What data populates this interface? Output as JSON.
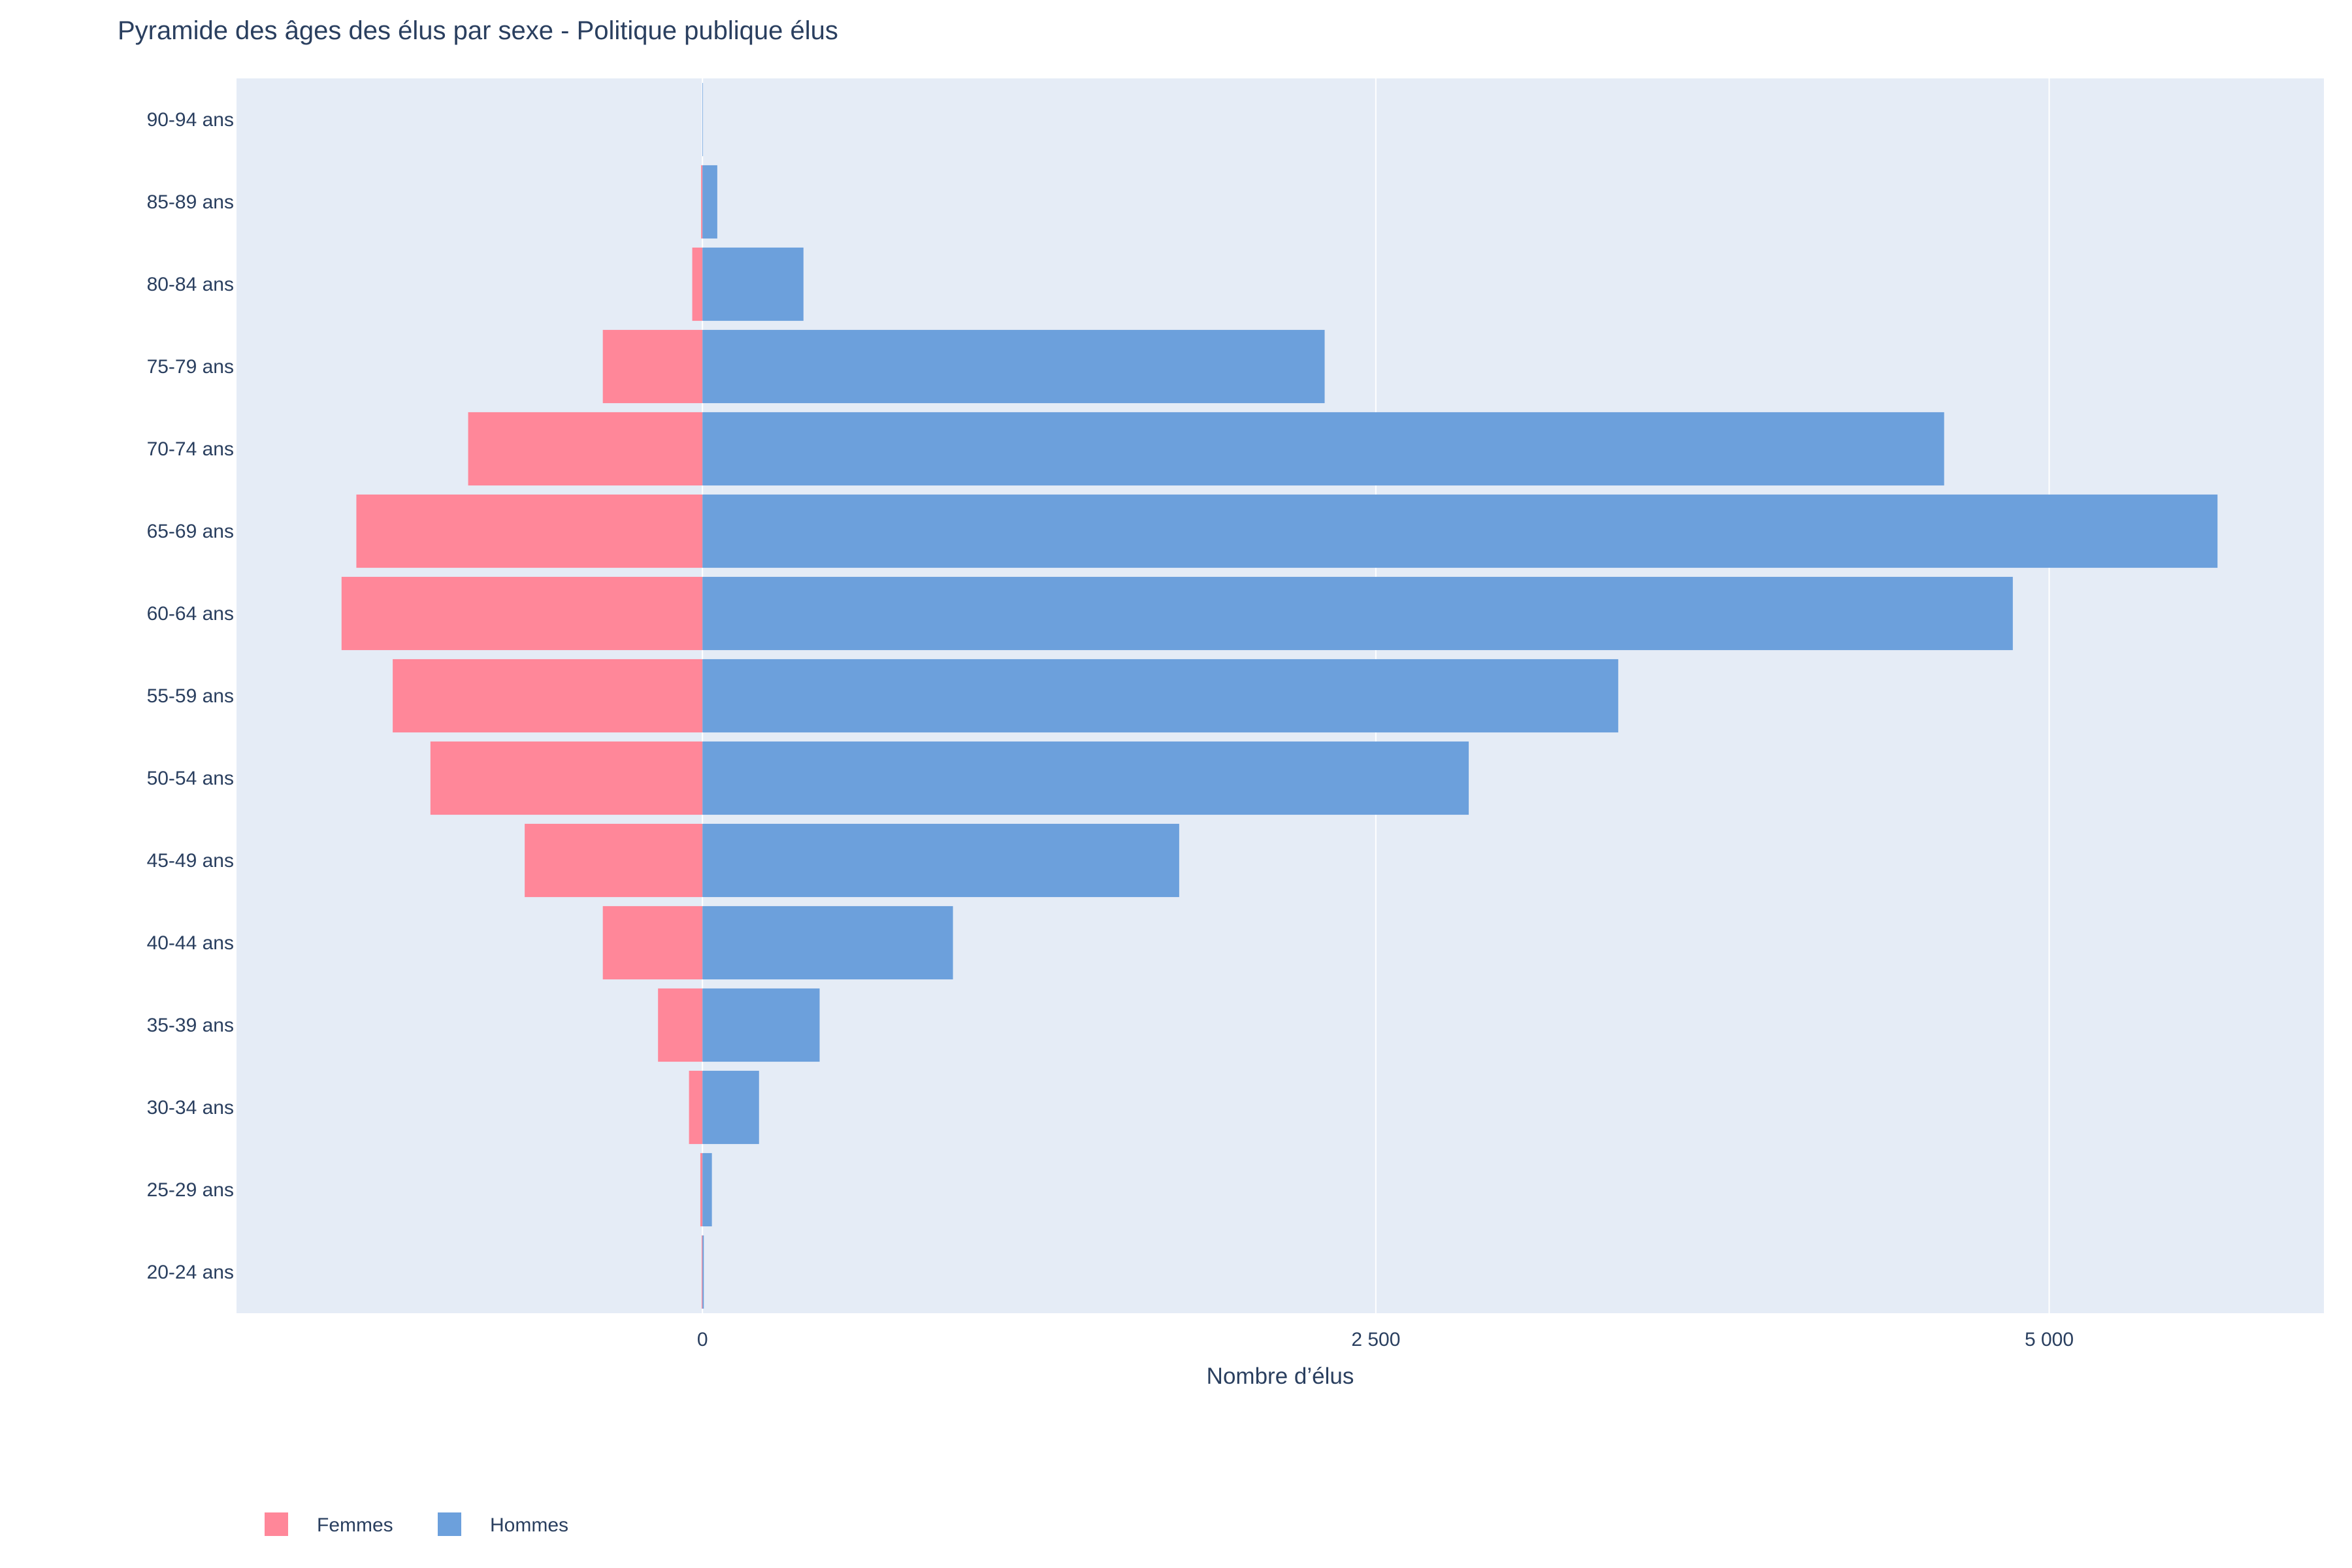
{
  "chart_data": {
    "type": "bar",
    "orientation": "horizontal",
    "barmode": "relative",
    "title": "Pyramide des âges des élus par sexe - Politique publique élus",
    "xlabel": "Nombre d’élus",
    "ylabel": "",
    "xlim": [
      -1730,
      6020
    ],
    "x_ticks": [
      0,
      2500,
      5000
    ],
    "x_tick_labels": [
      "0",
      "2 500",
      "5 000"
    ],
    "grid": true,
    "legend_position": "bottom-left",
    "categories": [
      "20-24 ans",
      "25-29 ans",
      "30-34 ans",
      "35-39 ans",
      "40-44 ans",
      "45-49 ans",
      "50-54 ans",
      "55-59 ans",
      "60-64 ans",
      "65-69 ans",
      "70-74 ans",
      "75-79 ans",
      "80-84 ans",
      "85-89 ans",
      "90-94 ans"
    ],
    "series": [
      {
        "name": "Femmes",
        "color": "#ff8799",
        "values": [
          -3,
          -8,
          -50,
          -165,
          -370,
          -660,
          -1010,
          -1150,
          -1340,
          -1285,
          -870,
          -370,
          -38,
          -5,
          0
        ]
      },
      {
        "name": "Hommes",
        "color": "#6ca0dc",
        "values": [
          5,
          35,
          210,
          435,
          930,
          1770,
          2845,
          3400,
          4865,
          5625,
          4610,
          2310,
          375,
          55,
          2
        ]
      }
    ]
  },
  "colors": {
    "plot_background": "#e5ecf6",
    "gridline": "#ffffff",
    "text": "#2a3f5f"
  }
}
